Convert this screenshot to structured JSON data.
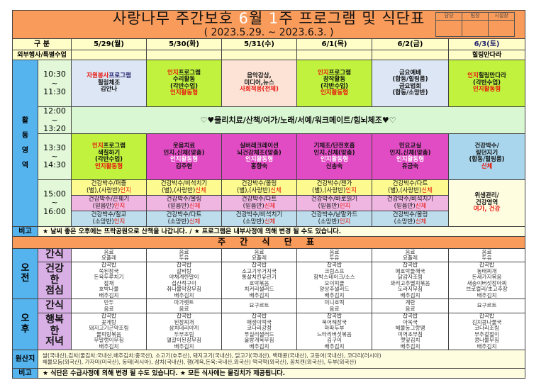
{
  "header": {
    "title_segments": [
      {
        "t": "사랑나무 주간보호   ",
        "c": ""
      },
      {
        "t": "6",
        "c": "white"
      },
      {
        "t": "월 ",
        "c": ""
      },
      {
        "t": "1",
        "c": "white"
      },
      {
        "t": "주 프로그램 및 식단표",
        "c": ""
      }
    ],
    "date_range": "( 2023.5.29. ~ 2023.6.3. )",
    "signatures": [
      "담당",
      "팀장",
      "시설장"
    ]
  },
  "colors": {
    "title": "#f99b5b",
    "lavender": "#dce6f4",
    "lime": "#c0f23e",
    "peach": "#fde3d5",
    "magenta": "#e14bc3",
    "skyblue": "#a9d6ec",
    "green": "#d9f7d2",
    "yellow": "#fdfb90",
    "pink": "#f0b6e2",
    "blue": "#bddcec",
    "cream": "#fffde0",
    "accent_red": "#e8140c"
  },
  "columns": {
    "label": "구 분",
    "days": [
      {
        "label": "5/29(월)",
        "c": ""
      },
      {
        "label": "5/30(화)",
        "c": ""
      },
      {
        "label": "5/31(수)",
        "c": ""
      },
      {
        "label": "6/1(목)",
        "c": ""
      },
      {
        "label": "6/2(금)",
        "c": ""
      },
      {
        "label": "6/3(토)",
        "c": "navy"
      }
    ]
  },
  "special": {
    "label": "외부행사/특별수업",
    "values": [
      "",
      "",
      "",
      "",
      "",
      "힐링만다라"
    ]
  },
  "activities": {
    "area_label": [
      "활",
      "동",
      "영",
      "역"
    ],
    "slot1": {
      "time": [
        "10:30",
        "~",
        "11:30"
      ],
      "cells": [
        {
          "bg": "lavender",
          "lines": [
            [
              {
                "t": "자원봉사",
                "c": "red"
              },
              {
                "t": "프로그램",
                "c": "navy"
              }
            ],
            [
              {
                "t": "힐링체조",
                "c": ""
              }
            ],
            [
              {
                "t": "김안나",
                "c": ""
              }
            ]
          ]
        },
        {
          "bg": "lime",
          "lines": [
            [
              {
                "t": "인지",
                "c": "red"
              },
              {
                "t": "프로그램",
                "c": ""
              }
            ],
            [
              {
                "t": "수리활동",
                "c": ""
              }
            ],
            [
              {
                "t": "(각반수업)",
                "c": ""
              }
            ],
            [
              {
                "t": "인지활동형",
                "c": "red"
              }
            ]
          ]
        },
        {
          "bg": "peach",
          "lines": [
            [
              {
                "t": "음악감상,",
                "c": ""
              }
            ],
            [
              {
                "t": "미디어,뉴스",
                "c": ""
              }
            ],
            [
              {
                "t": "사회적응(전체)",
                "c": "red"
              }
            ]
          ]
        },
        {
          "bg": "lime",
          "lines": [
            [
              {
                "t": "인지",
                "c": "red"
              },
              {
                "t": "프로그램",
                "c": ""
              }
            ],
            [
              {
                "t": "창작활동",
                "c": ""
              }
            ],
            [
              {
                "t": "(각반수업)",
                "c": ""
              }
            ],
            [
              {
                "t": "인지활동형",
                "c": "red"
              }
            ]
          ]
        },
        {
          "bg": "lavender",
          "lines": [
            [
              {
                "t": "금요예배",
                "c": ""
              }
            ],
            [
              {
                "t": "(합동/힐링룸)",
                "c": ""
              }
            ],
            [
              {
                "t": "금요법회",
                "c": ""
              }
            ],
            [
              {
                "t": "(합동/소망반)",
                "c": ""
              }
            ]
          ]
        },
        {
          "bg": "lime",
          "lines": [
            [
              {
                "t": "인지",
                "c": "red"
              },
              {
                "t": "힐링만다라",
                "c": ""
              }
            ],
            [
              {
                "t": "(각반수업)",
                "c": ""
              }
            ],
            [
              {
                "t": "인지활동형",
                "c": "red"
              }
            ]
          ]
        }
      ]
    },
    "slot2": {
      "time": [
        "12:00",
        "~",
        "13:20"
      ],
      "text": "♡♥물리치료/산책/여가/노래/서예/워크메이트/힘뇌체조♥♡"
    },
    "slot3": {
      "time": [
        "13:30",
        "~",
        "14:30"
      ],
      "cells": [
        {
          "bg": "lime",
          "lines": [
            [
              {
                "t": "인지",
                "c": "red"
              },
              {
                "t": "프로그램",
                "c": ""
              }
            ],
            [
              {
                "t": "색칠하기",
                "c": ""
              }
            ],
            [
              {
                "t": "(각반수업)",
                "c": ""
              }
            ],
            [
              {
                "t": "인지활동형",
                "c": "red"
              }
            ]
          ]
        },
        {
          "bg": "magenta",
          "lines": [
            [
              {
                "t": "웃음치료",
                "c": ""
              }
            ],
            [
              {
                "t": "인지.신체(맞춤)",
                "c": ""
              }
            ],
            [
              {
                "t": "인지활동형",
                "c": "white"
              }
            ],
            [
              {
                "t": "김주현",
                "c": ""
              }
            ]
          ]
        },
        {
          "bg": "magenta",
          "lines": [
            [
              {
                "t": "실버레크레이션",
                "c": ""
              }
            ],
            [
              {
                "t": "뇌건강체조(맞춤)",
                "c": ""
              }
            ],
            [
              {
                "t": "인지활동형",
                "c": "white"
              }
            ],
            [
              {
                "t": "홍향숙",
                "c": ""
              }
            ]
          ]
        },
        {
          "bg": "magenta",
          "lines": [
            [
              {
                "t": "기체조/단전호흡",
                "c": ""
              }
            ],
            [
              {
                "t": "인지.신체(맞춤)",
                "c": ""
              }
            ],
            [
              {
                "t": "인지활동형",
                "c": "white"
              }
            ],
            [
              {
                "t": "신송숙",
                "c": ""
              }
            ]
          ]
        },
        {
          "bg": "magenta",
          "lines": [
            [
              {
                "t": "민요교실",
                "c": ""
              }
            ],
            [
              {
                "t": "인지.신체(맞춤)",
                "c": ""
              }
            ],
            [
              {
                "t": "인지활동형",
                "c": "white"
              }
            ],
            [
              {
                "t": "유금숙",
                "c": ""
              }
            ]
          ]
        },
        {
          "bg": "skyblue",
          "lines": [
            [
              {
                "t": "건강박수/",
                "c": ""
              }
            ],
            [
              {
                "t": "링던지기",
                "c": ""
              }
            ],
            [
              {
                "t": "(합동/힐링룸)",
                "c": ""
              }
            ],
            [
              {
                "t": "신체",
                "c": "red"
              }
            ]
          ]
        }
      ]
    },
    "slot4": {
      "time": [
        "15:00",
        "~",
        "16:00"
      ],
      "subrows": [
        {
          "bg": "yellow",
          "cells": [
            [
              [
                {
                  "t": "건강박수/퍼즐",
                  "c": ""
                }
              ],
              [
                {
                  "t": "(별),(사랑반)",
                  "c": ""
                },
                {
                  "t": "인지",
                  "c": "red"
                }
              ]
            ],
            [
              [
                {
                  "t": "건강박수/비석치기",
                  "c": ""
                }
              ],
              [
                {
                  "t": "(별),(사랑반)",
                  "c": ""
                },
                {
                  "t": "신체",
                  "c": "red"
                }
              ]
            ],
            [
              [
                {
                  "t": "건강박수/볼링",
                  "c": ""
                }
              ],
              [
                {
                  "t": "(별),(사랑반)",
                  "c": ""
                },
                {
                  "t": "신체",
                  "c": "red"
                }
              ]
            ],
            [
              [
                {
                  "t": "건강박수/젠가",
                  "c": ""
                }
              ],
              [
                {
                  "t": "(별),(사랑반)",
                  "c": ""
                },
                {
                  "t": "인지",
                  "c": "red"
                }
              ]
            ],
            [
              [
                {
                  "t": "건강박수/다트",
                  "c": ""
                }
              ],
              [
                {
                  "t": "(별),(사랑반)",
                  "c": ""
                },
                {
                  "t": "신체",
                  "c": "red"
                }
              ]
            ]
          ]
        },
        {
          "bg": "pink",
          "cells": [
            [
              [
                {
                  "t": "건강박수/끈꿰기",
                  "c": ""
                }
              ],
              [
                {
                  "t": "(믿음반)",
                  "c": ""
                },
                {
                  "t": "인지",
                  "c": "red"
                }
              ]
            ],
            [
              [
                {
                  "t": "건강박수/볼링",
                  "c": ""
                }
              ],
              [
                {
                  "t": "(믿음반)",
                  "c": ""
                },
                {
                  "t": "신체",
                  "c": "red"
                }
              ]
            ],
            [
              [
                {
                  "t": "건강박수/다트",
                  "c": ""
                }
              ],
              [
                {
                  "t": "(믿음반)",
                  "c": ""
                },
                {
                  "t": "신체",
                  "c": "red"
                }
              ]
            ],
            [
              [
                {
                  "t": "건강박수/바로읽기",
                  "c": ""
                }
              ],
              [
                {
                  "t": "(믿음반)",
                  "c": ""
                },
                {
                  "t": "인지",
                  "c": "red"
                }
              ]
            ],
            [
              [
                {
                  "t": "건강박수/비석치기",
                  "c": ""
                }
              ],
              [
                {
                  "t": "(믿음반)",
                  "c": ""
                },
                {
                  "t": "신체",
                  "c": "red"
                }
              ]
            ]
          ]
        },
        {
          "bg": "blue",
          "cells": [
            [
              [
                {
                  "t": "건강박수/칠교",
                  "c": ""
                }
              ],
              [
                {
                  "t": "(소망반)",
                  "c": ""
                },
                {
                  "t": "인지",
                  "c": "red"
                }
              ]
            ],
            [
              [
                {
                  "t": "건강박수/다트",
                  "c": ""
                }
              ],
              [
                {
                  "t": "(소망반)",
                  "c": ""
                },
                {
                  "t": "신체",
                  "c": "red"
                }
              ]
            ],
            [
              [
                {
                  "t": "건강박수/비석치기",
                  "c": ""
                }
              ],
              [
                {
                  "t": "(소망반)",
                  "c": ""
                },
                {
                  "t": "신체",
                  "c": "red"
                }
              ]
            ],
            [
              [
                {
                  "t": "건강박수/낱말카드",
                  "c": ""
                }
              ],
              [
                {
                  "t": "(소망반)",
                  "c": ""
                },
                {
                  "t": "인지",
                  "c": "red"
                }
              ]
            ],
            [
              [
                {
                  "t": "건강박수/볼링",
                  "c": ""
                }
              ],
              [
                {
                  "t": "(소망반)",
                  "c": ""
                },
                {
                  "t": "신체",
                  "c": "red"
                }
              ]
            ]
          ]
        }
      ],
      "saturday": {
        "bg": "cream",
        "lines": [
          [
            {
              "t": "위생관리/",
              "c": ""
            }
          ],
          [
            {
              "t": "건강영역",
              "c": ""
            }
          ],
          [
            {
              "t": "여가, 건강",
              "c": "red"
            }
          ]
        ]
      }
    }
  },
  "notes": {
    "label": "비고",
    "text": "★ 날씨 좋은 오후에는 뜨락공원으로 산책을 나갑니다. / ★ 프로그램은 내부사정에 의해 변경 될 수도 있습니다."
  },
  "menu": {
    "title": "주 간 식 단 표",
    "morning_label": [
      "오",
      "전"
    ],
    "afternoon_label": [
      "오",
      "후"
    ],
    "snack_label": [
      "간식"
    ],
    "lunch_label": [
      "건강",
      "한",
      "점심"
    ],
    "dinner_label": [
      "행복",
      "한",
      "저녁"
    ],
    "morning_snack": [
      [
        "음료",
        "요플레"
      ],
      [
        "음료",
        "두유"
      ],
      [
        "음료",
        "요플레"
      ],
      [
        "음료",
        "두유"
      ],
      [
        "음료",
        "요플레"
      ],
      [
        "음료",
        "두유"
      ]
    ],
    "lunch": [
      [
        "잡곡밥",
        "쑥된장국",
        "돈육두루치기",
        "잡채",
        "호박나물",
        "배추김치"
      ],
      [
        "잡곡밥",
        "갈비탕",
        "야채계란말이",
        "섭산적구이",
        "취나물막장무침",
        "배추김치"
      ],
      [
        "잡곡밥",
        "소고기우거지국",
        "통살치킨유린기",
        "호박볶음",
        "치커리샐러드",
        "배추김치"
      ],
      [
        "잡곡밥",
        "크림스프",
        "함박스테이크/소스",
        "오이피클",
        "양상추샐러드",
        "배추김치"
      ],
      [
        "잡곡밥",
        "애호박들깨국",
        "닭감자조림",
        "꽈리고추멸치볶음",
        "도라지무침",
        "배추김치"
      ],
      [
        "잡곡밥",
        "동태찌개",
        "돈새가지볶음",
        "새송이버섯장아찌",
        "브로컬리/초고추장",
        "배추김치"
      ]
    ],
    "afternoon_snack": [
      [
        "만두",
        "음료"
      ],
      [
        "마가렛트",
        "음료"
      ],
      [
        "요구르트"
      ],
      [
        "미니호떡",
        "음료"
      ],
      [
        "계란",
        "음료"
      ],
      [
        "요구르트"
      ]
    ],
    "dinner": [
      [
        "잡곡밥",
        "꽃게탕",
        "돼지고기곤약조림",
        "물피망볶음",
        "무말랭이무침",
        "배추김치"
      ],
      [
        "잡곡밥",
        "된장찌개",
        "삼치데리야끼",
        "두부조림",
        "열갈이된장무침",
        "배추김치"
      ],
      [
        "잡곡밥",
        "매생이떡국",
        "코다리강정",
        "푸실리샐러드",
        "올방개묵무침",
        "배추김치"
      ],
      [
        "잡곡밥",
        "북어해장국",
        "마파두부",
        "느타리버섯볶음",
        "김구이",
        "배추김치"
      ],
      [
        "잡곡밥",
        "아욱국",
        "해물동그랑땡",
        "미역초무침",
        "깻잎김치",
        "배추김치"
      ],
      [
        "잡곡밥",
        "김치콩나물국",
        "코다리조림",
        "부추겉절이",
        "콩나물무침",
        "배추김치"
      ]
    ]
  },
  "origin": {
    "label": "원산지",
    "lines": [
      "쌀(국내산),김치(물김치:국내산,배추김치:중국산), 소고기(호주산), 돼지고기(국내산), 닭고기(국내산), 백태콩(국내산), 고등어(국내산), 코다리(러시아)",
      "해물모듬(외국산), 가자미(미국산), 동태(러시아), 삼치(국내산), 햄(계육,돈육:국내산,외국산) 떡국떡(외국산), 꽁치캔(외국산), 두부(외국산)"
    ]
  },
  "footer_notes": {
    "label": "비고",
    "text": "★ 식단은 수급사정에 의해 변경 될 수도 있습니다. ★ 모든 식사에는 물김치가 제공됩니다."
  }
}
